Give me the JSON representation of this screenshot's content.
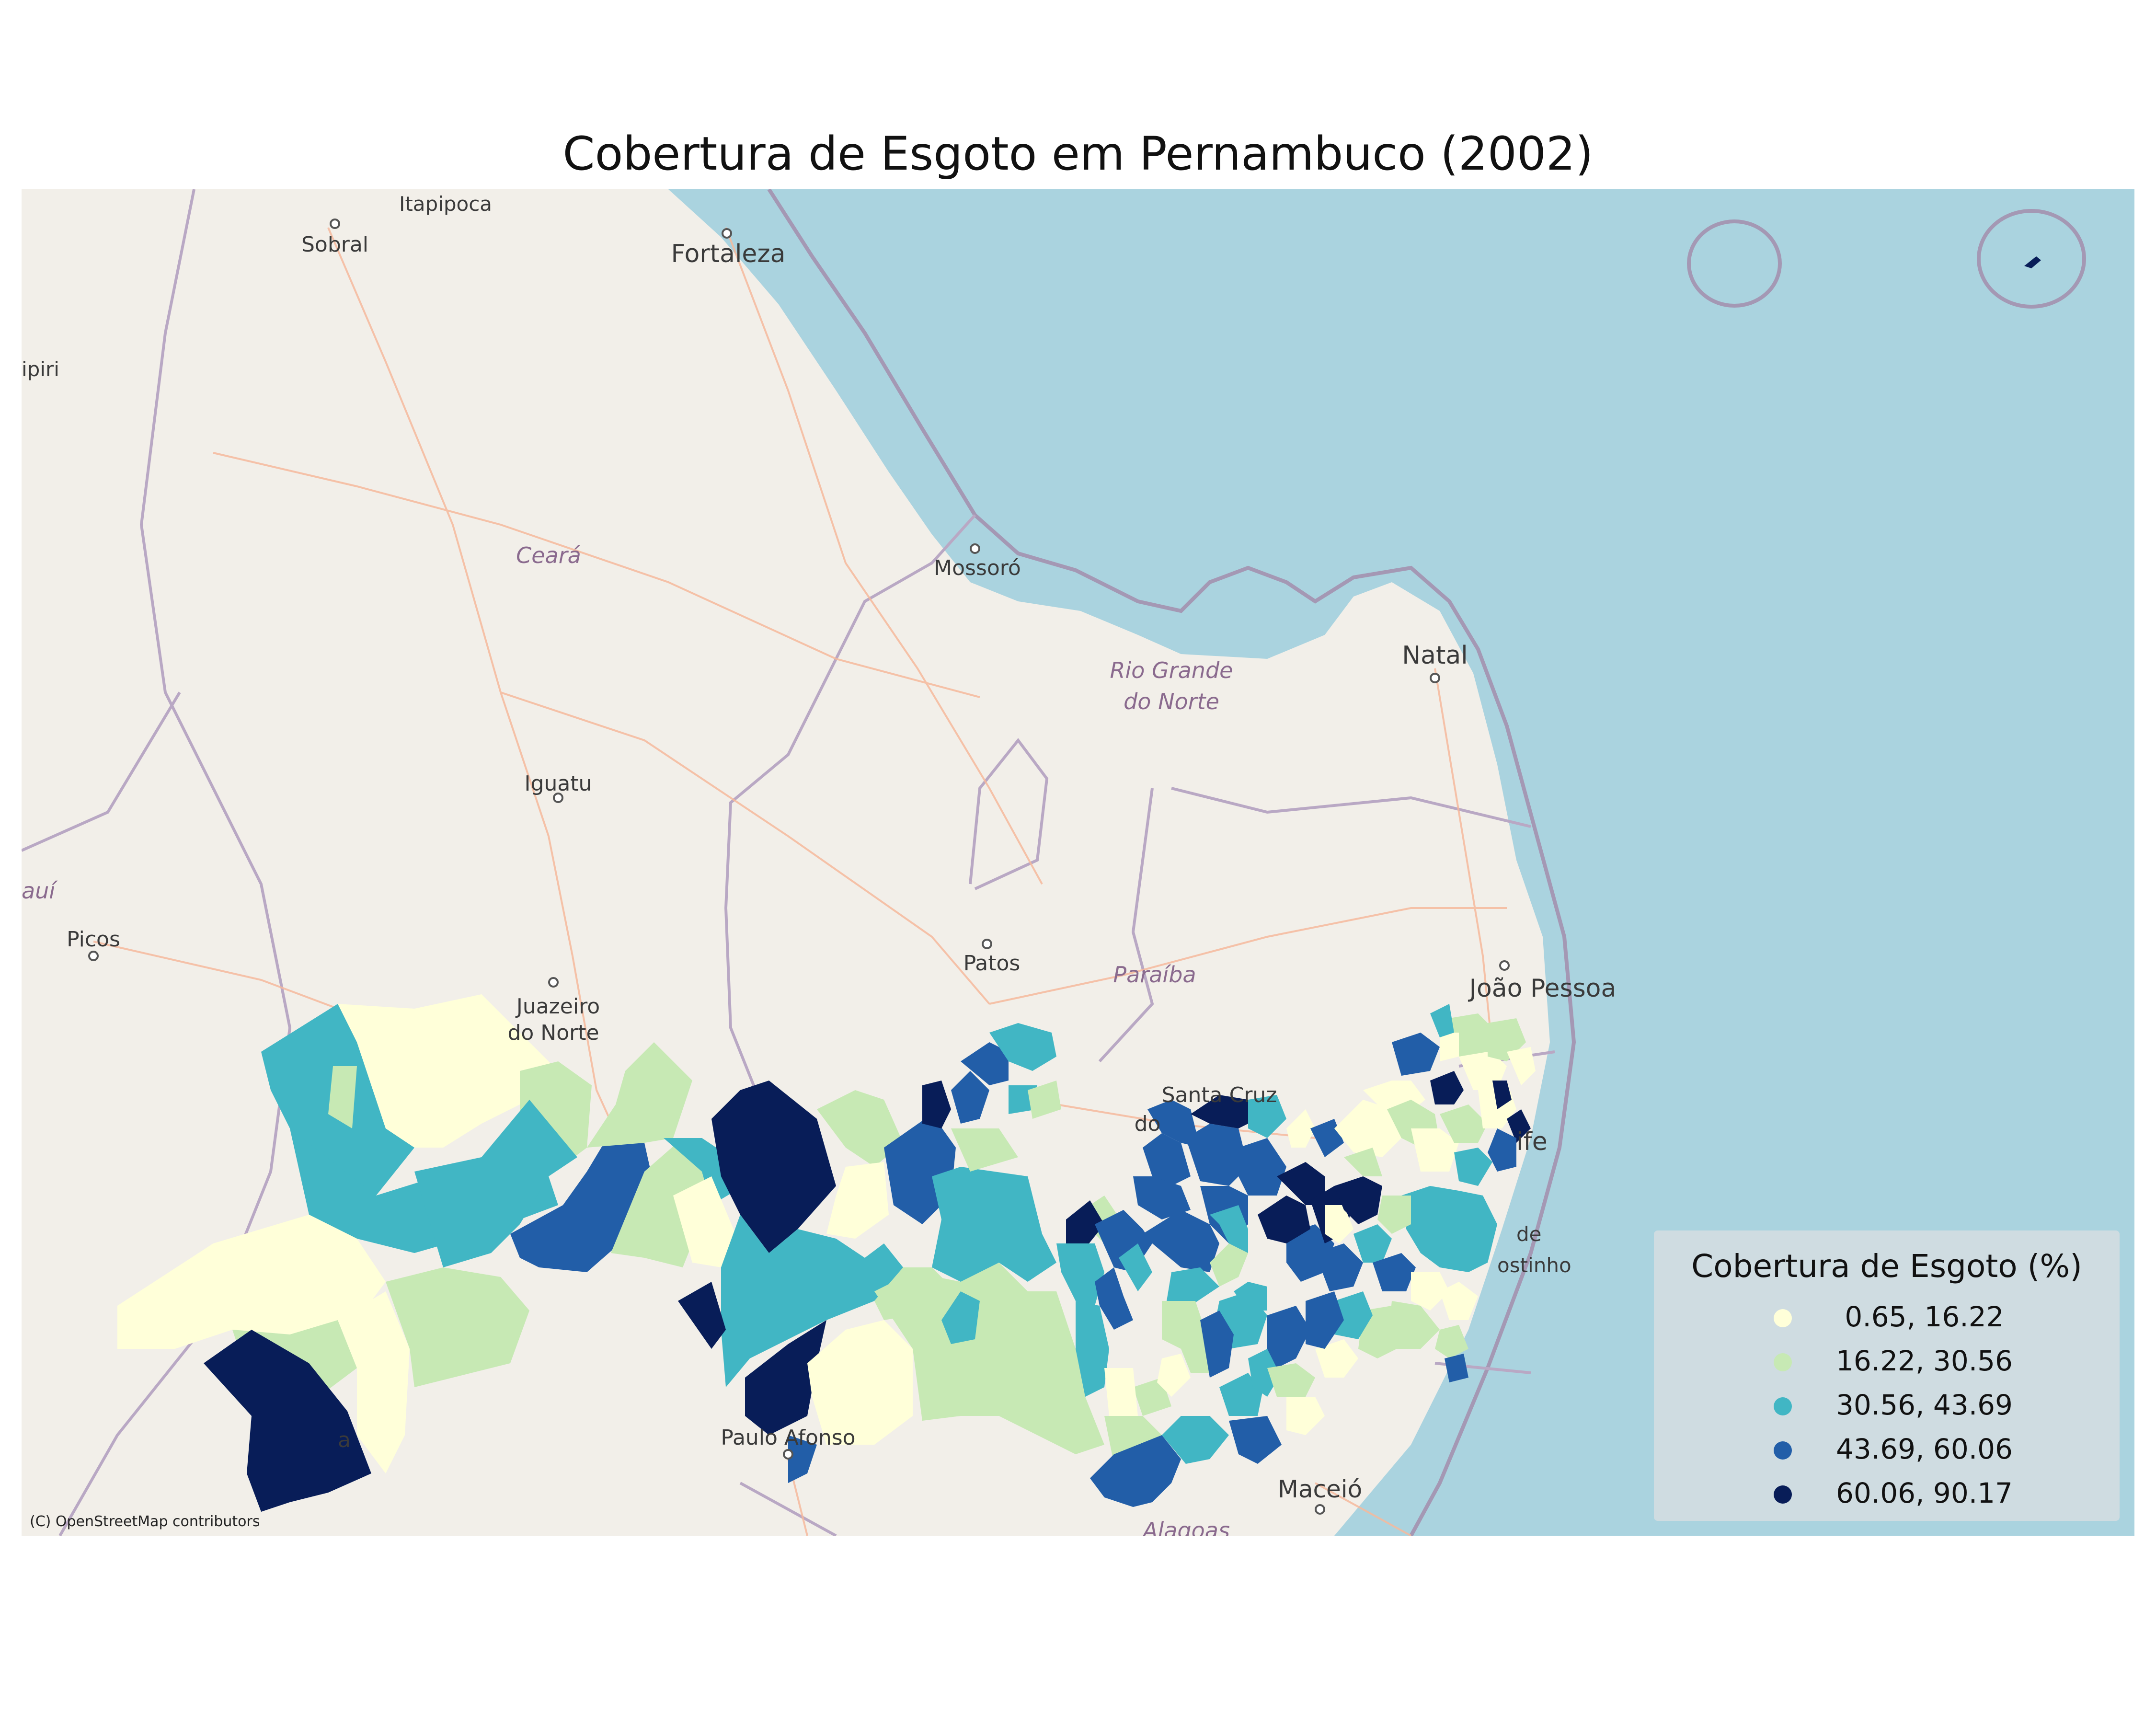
{
  "title": "Cobertura de Esgoto em Pernambuco (2002)",
  "basemap": {
    "attribution": "(C) OpenStreetMap contributors",
    "cities": [
      {
        "name": "Itapipoca"
      },
      {
        "name": "Sobral"
      },
      {
        "name": "Fortaleza"
      },
      {
        "name": "ipiri"
      },
      {
        "name": "Mossoró"
      },
      {
        "name": "Natal"
      },
      {
        "name": "Iguatu"
      },
      {
        "name": "Picos"
      },
      {
        "name": "Patos"
      },
      {
        "name": "João Pessoa"
      },
      {
        "name": "Juazeiro"
      },
      {
        "name": "do Norte"
      },
      {
        "name": "Santa Cruz"
      },
      {
        "name": "do"
      },
      {
        "name": "ife"
      },
      {
        "name": "de"
      },
      {
        "name": "ostinho"
      },
      {
        "name": "Paulo Afonso"
      },
      {
        "name": "Maceió"
      },
      {
        "name": "a"
      }
    ],
    "states": [
      {
        "name": "Ceará"
      },
      {
        "name": "Rio Grande"
      },
      {
        "name": "do Norte"
      },
      {
        "name": "Paraíba"
      },
      {
        "name": "auí"
      },
      {
        "name": "Alagoas"
      }
    ],
    "colors": {
      "land": "#f2efe9",
      "sea": "#aad3df",
      "border": "#b1a0bc",
      "road": "#f6b99c"
    }
  },
  "legend": {
    "title": "Cobertura de Esgoto (%)",
    "items": [
      {
        "label": " 0.65, 16.22",
        "color": "#ffffd9"
      },
      {
        "label": "16.22, 30.56",
        "color": "#c7e9b4"
      },
      {
        "label": "30.56, 43.69",
        "color": "#41b6c4"
      },
      {
        "label": "43.69, 60.06",
        "color": "#225ea8"
      },
      {
        "label": "60.06, 90.17",
        "color": "#081d58"
      }
    ]
  }
}
